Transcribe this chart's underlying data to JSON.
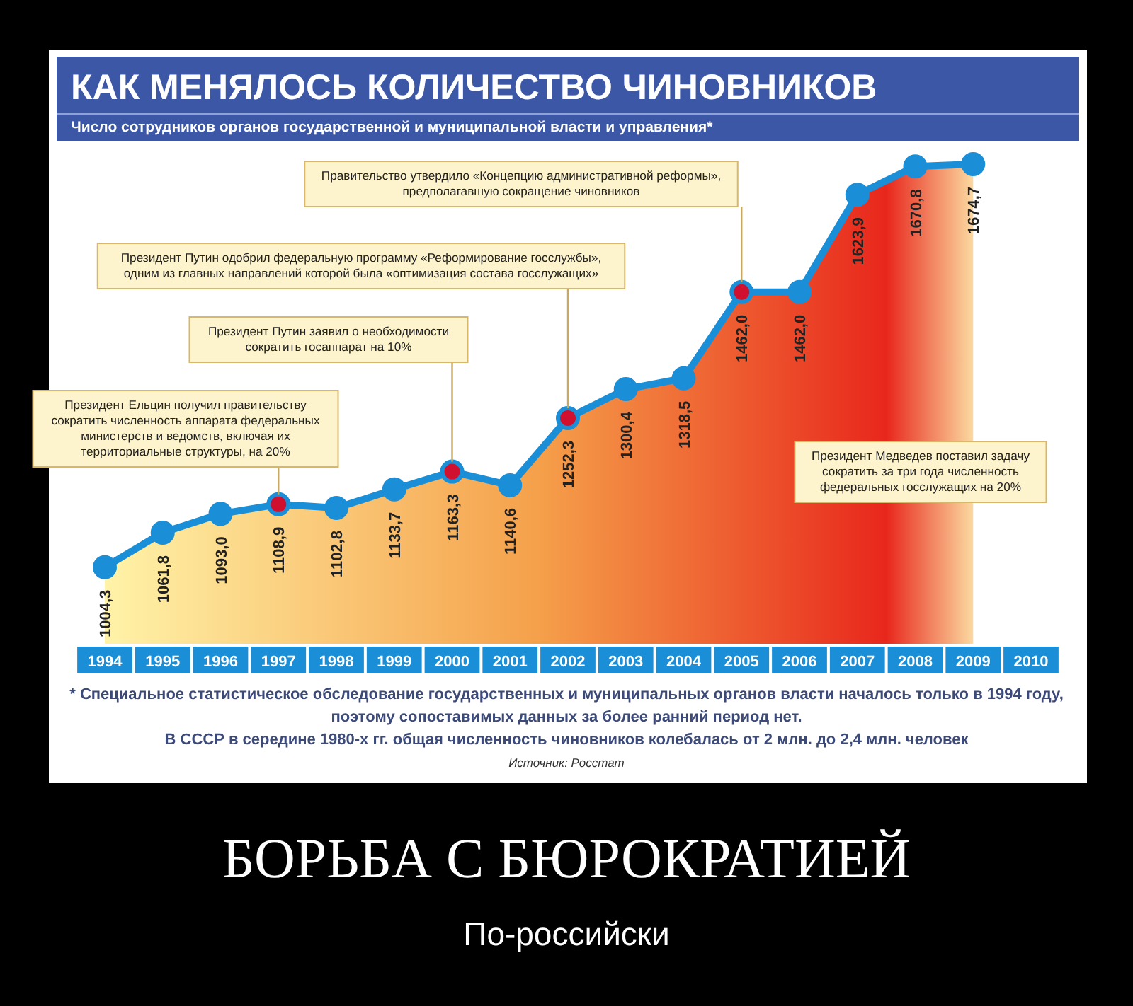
{
  "chart_data": {
    "type": "area",
    "title": "КАК МЕНЯЛОСЬ КОЛИЧЕСТВО ЧИНОВНИКОВ",
    "subtitle": "Число сотрудников органов государственной и муниципальной власти и управления*",
    "categories": [
      "1994",
      "1995",
      "1996",
      "1997",
      "1998",
      "1999",
      "2000",
      "2001",
      "2002",
      "2003",
      "2004",
      "2005",
      "2006",
      "2007",
      "2008",
      "2009",
      "2010"
    ],
    "series": [
      {
        "color": "#1a8fd8",
        "colors": [
          "#1a8fd8",
          "#1a8fd8",
          "#1a8fd8",
          "#d0102e",
          "#1a8fd8",
          "#1a8fd8",
          "#d0102e",
          "#1a8fd8",
          "#d0102e",
          "#1a8fd8",
          "#1a8fd8",
          "#d0102e",
          "#1a8fd8",
          "#1a8fd8",
          "#1a8fd8",
          "#1a8fd8",
          null
        ],
        "values": [
          1004.3,
          1061.8,
          1093.0,
          1108.9,
          1102.8,
          1133.7,
          1163.3,
          1140.6,
          1252.3,
          1300.4,
          1318.5,
          1462.0,
          1462.0,
          1623.9,
          1670.8,
          1674.7,
          null
        ],
        "value_labels": [
          "1004,3",
          "1061,8",
          "1093,0",
          "1108,9",
          "1102,8",
          "1133,7",
          "1163,3",
          "1140,6",
          "1252,3",
          "1300,4",
          "1318,5",
          "1462,0",
          "1462,0",
          "1623,9",
          "1670,8",
          "1674,7",
          null
        ]
      }
    ],
    "marker": "circle",
    "annotations": [
      "Президент Ельцин получил правительству сократить численность аппарата федеральных министерств и ведомств, включая их территориальные структуры, на 20%",
      "Президент Путин заявил о необходимости сократить госаппарат на 10%",
      "Президент Путин одобрил федеральную программу «Реформирование госслужбы», одним из главных направлений которой была «оптимизация состава госслужащих»",
      "Правительство утвердило «Концепцию административной реформы», предполагавшую сокращение чиновников",
      "Президент Медведев поставил задачу сократить за три года численность федеральных госслужащих на 20%",
      "* Специальное статистическое обследование государственных и муниципальных органов власти началось только в 1994 году, поэтому сопоставимых данных за более ранний период нет.",
      "В СССР в середине 1980-х гг. общая численность чиновников колебалась от 2 млн. до 2,4 млн. человек",
      "Источник: Росстат",
      "БОРЬБА С БЮРОКРАТИЕЙ",
      "По-российски"
    ]
  }
}
